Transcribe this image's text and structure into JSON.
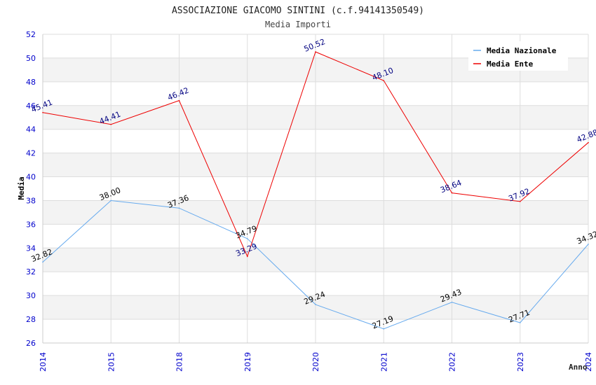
{
  "chart_data": {
    "type": "line",
    "title": "ASSOCIAZIONE GIACOMO SINTINI (c.f.94141350549)",
    "subtitle": "Media Importi",
    "xlabel": "Anno",
    "ylabel": "Media",
    "ylim": [
      26,
      52
    ],
    "ytick_step": 2,
    "grid": true,
    "legend_position": "top-right",
    "categories": [
      "2014",
      "2015",
      "2018",
      "2019",
      "2020",
      "2021",
      "2022",
      "2023",
      "2024"
    ],
    "series": [
      {
        "name": "Media Nazionale",
        "color": "#66aaee",
        "label_color": "#000000",
        "values": [
          32.82,
          38.0,
          37.36,
          34.79,
          29.24,
          27.19,
          29.43,
          27.71,
          34.32
        ],
        "labels": [
          "32.82",
          "38.00",
          "37.36",
          "34.79",
          "29.24",
          "27.19",
          "29.43",
          "27.71",
          "34.32"
        ]
      },
      {
        "name": "Media Ente",
        "color": "#ee0000",
        "label_color": "#000080",
        "values": [
          45.41,
          44.41,
          46.42,
          33.29,
          50.52,
          48.1,
          38.64,
          37.92,
          42.88
        ],
        "labels": [
          "45.41",
          "44.41",
          "46.42",
          "33.29",
          "50.52",
          "48.10",
          "38.64",
          "37.92",
          "42.88"
        ]
      }
    ]
  },
  "colors": {
    "tick_label": "#0000cc",
    "band": "#f3f3f3",
    "grid": "#dddddd",
    "axis": "#cccccc",
    "title": "#222222"
  }
}
